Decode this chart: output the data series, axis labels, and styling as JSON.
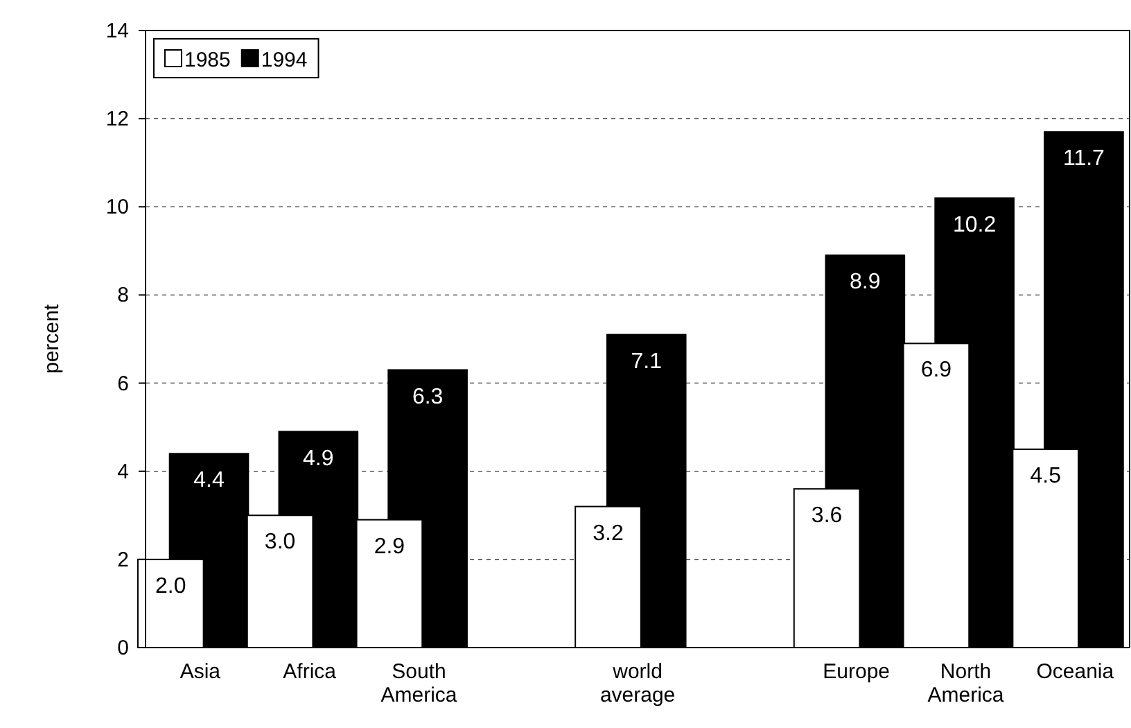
{
  "chart_data": {
    "type": "bar",
    "ylabel": "percent",
    "categories": [
      "Asia",
      "Africa",
      "South America",
      null,
      "world average",
      null,
      "Europe",
      "North America",
      "Oceania"
    ],
    "series": [
      {
        "name": "1985",
        "color": "#ffffff",
        "values": [
          2.0,
          3.0,
          2.9,
          null,
          3.2,
          null,
          3.6,
          6.9,
          4.5
        ],
        "value_labels": [
          "2.0",
          "3.0",
          "2.9",
          null,
          "3.2",
          null,
          "3.6",
          "6.9",
          "4.5"
        ]
      },
      {
        "name": "1994",
        "color": "#000000",
        "values": [
          4.4,
          4.9,
          6.3,
          null,
          7.1,
          null,
          8.9,
          10.2,
          11.7
        ],
        "value_labels": [
          "4.4",
          "4.9",
          "6.3",
          null,
          "7.1",
          null,
          "8.9",
          "10.2",
          "11.7"
        ]
      }
    ],
    "ylim": [
      0,
      14
    ],
    "yticks": [
      0,
      2,
      4,
      6,
      8,
      10,
      12,
      14
    ],
    "grid": "y",
    "legend": "top left"
  }
}
